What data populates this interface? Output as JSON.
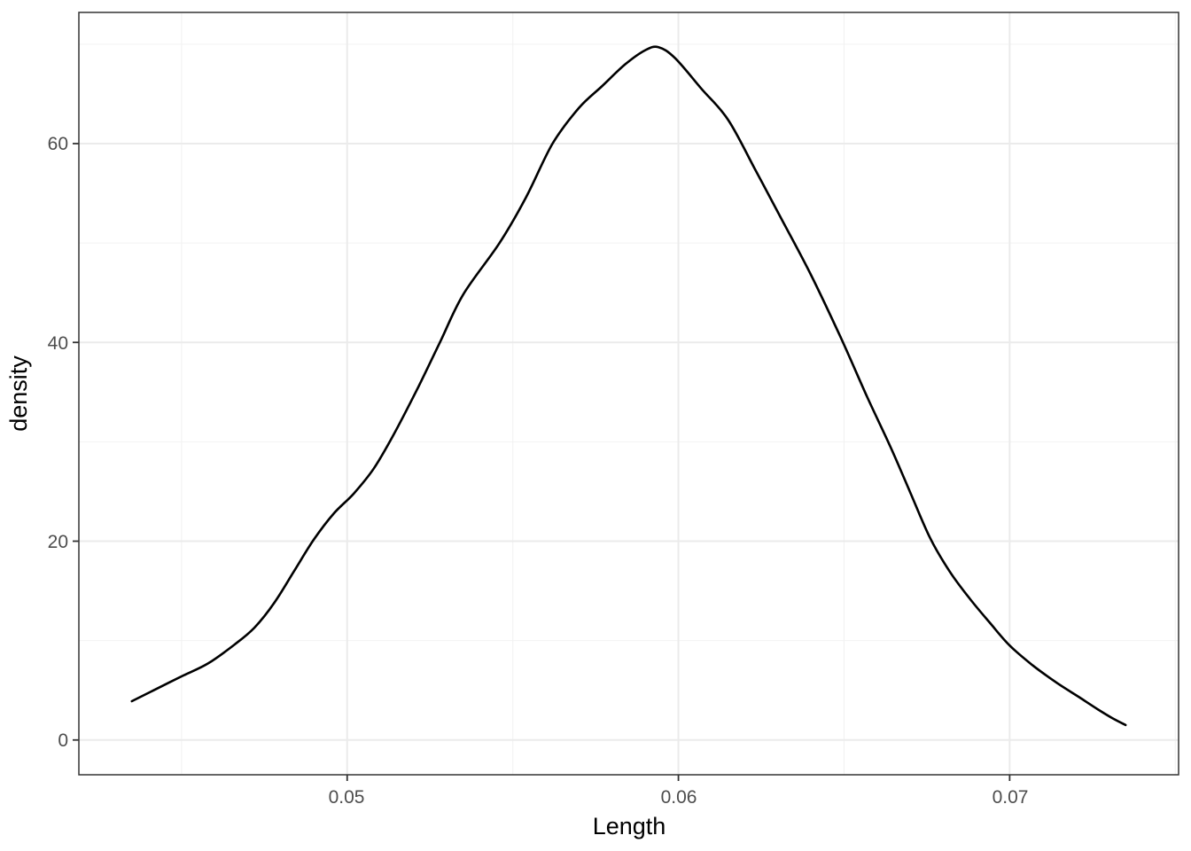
{
  "chart_data": {
    "type": "line",
    "subtype": "kernel-density",
    "title": "",
    "xlabel": "Length",
    "ylabel": "density",
    "xlim": [
      0.0419,
      0.0751
    ],
    "ylim": [
      -3.5,
      73.2
    ],
    "grid": true,
    "legend": "none",
    "x_axis": {
      "tick_values": [
        0.05,
        0.06,
        0.07
      ],
      "tick_labels": [
        "0.05",
        "0.06",
        "0.07"
      ],
      "minor_tick_values": [
        0.045,
        0.055,
        0.065,
        0.075
      ]
    },
    "y_axis": {
      "tick_values": [
        0,
        20,
        40,
        60
      ],
      "tick_labels": [
        "0",
        "20",
        "40",
        "60"
      ],
      "minor_tick_values": [
        10,
        30,
        50,
        70
      ]
    },
    "series": [
      {
        "name": "density of Length",
        "color": "#000000",
        "points": [
          [
            0.0435,
            3.9
          ],
          [
            0.0441,
            4.9
          ],
          [
            0.045,
            6.4
          ],
          [
            0.0458,
            7.7
          ],
          [
            0.0466,
            9.6
          ],
          [
            0.0472,
            11.3
          ],
          [
            0.0478,
            13.8
          ],
          [
            0.0484,
            17.0
          ],
          [
            0.049,
            20.2
          ],
          [
            0.0496,
            22.8
          ],
          [
            0.0502,
            24.8
          ],
          [
            0.0508,
            27.3
          ],
          [
            0.0514,
            30.7
          ],
          [
            0.0521,
            35.2
          ],
          [
            0.0528,
            40.0
          ],
          [
            0.0535,
            44.8
          ],
          [
            0.0546,
            50.0
          ],
          [
            0.0554,
            54.6
          ],
          [
            0.0562,
            60.0
          ],
          [
            0.057,
            63.6
          ],
          [
            0.0577,
            65.8
          ],
          [
            0.0584,
            68.0
          ],
          [
            0.059,
            69.4
          ],
          [
            0.0594,
            69.7
          ],
          [
            0.0599,
            68.6
          ],
          [
            0.0607,
            65.5
          ],
          [
            0.0615,
            62.4
          ],
          [
            0.0623,
            57.5
          ],
          [
            0.0631,
            52.5
          ],
          [
            0.064,
            46.8
          ],
          [
            0.0649,
            40.5
          ],
          [
            0.0657,
            34.5
          ],
          [
            0.0664,
            29.5
          ],
          [
            0.067,
            24.9
          ],
          [
            0.0676,
            20.3
          ],
          [
            0.0682,
            16.9
          ],
          [
            0.0688,
            14.2
          ],
          [
            0.0694,
            11.8
          ],
          [
            0.07,
            9.5
          ],
          [
            0.0707,
            7.5
          ],
          [
            0.0714,
            5.8
          ],
          [
            0.0721,
            4.3
          ],
          [
            0.0727,
            3.0
          ],
          [
            0.0731,
            2.2
          ],
          [
            0.0735,
            1.5
          ]
        ]
      }
    ]
  },
  "colors": {
    "background": "#ffffff",
    "panel_background": "#ffffff",
    "panel_border": "#333333",
    "major_grid": "#ebebeb",
    "minor_grid": "#f2f2f2",
    "tick_mark": "#333333",
    "tick_label": "#4d4d4d",
    "axis_title": "#000000",
    "curve": "#000000"
  }
}
